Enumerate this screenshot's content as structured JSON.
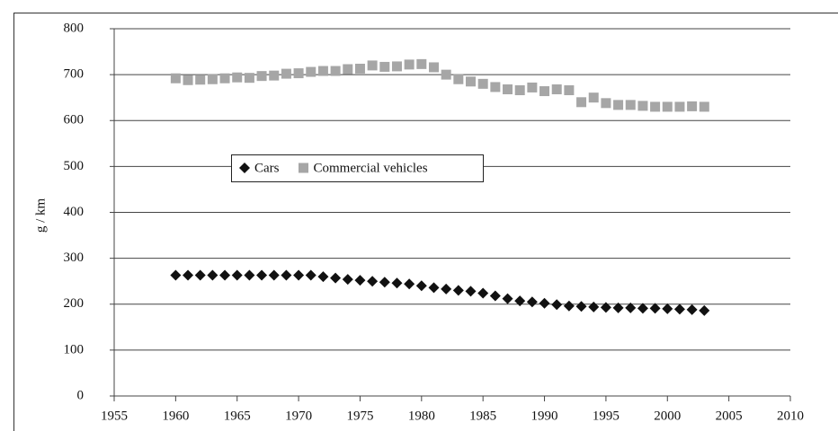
{
  "chart_data": {
    "type": "scatter",
    "y_label": "g / km",
    "x": [
      1960,
      1961,
      1962,
      1963,
      1964,
      1965,
      1966,
      1967,
      1968,
      1969,
      1970,
      1971,
      1972,
      1973,
      1974,
      1975,
      1976,
      1977,
      1978,
      1979,
      1980,
      1981,
      1982,
      1983,
      1984,
      1985,
      1986,
      1987,
      1988,
      1989,
      1990,
      1991,
      1992,
      1993,
      1994,
      1995,
      1996,
      1997,
      1998,
      1999,
      2000,
      2001,
      2002,
      2003
    ],
    "series": [
      {
        "name": "Cars",
        "color": "#111111",
        "marker": "diamond",
        "values": [
          263,
          263,
          263,
          263,
          263,
          263,
          263,
          263,
          263,
          263,
          263,
          263,
          260,
          257,
          254,
          252,
          250,
          248,
          246,
          244,
          240,
          236,
          233,
          230,
          228,
          224,
          218,
          212,
          207,
          205,
          202,
          199,
          196,
          195,
          194,
          193,
          192,
          192,
          191,
          191,
          190,
          189,
          188,
          186
        ]
      },
      {
        "name": "Commercial vehicles",
        "color": "#a6a6a6",
        "marker": "square",
        "values": [
          692,
          688,
          689,
          690,
          692,
          694,
          693,
          697,
          698,
          702,
          703,
          706,
          708,
          708,
          712,
          713,
          720,
          717,
          718,
          722,
          723,
          716,
          700,
          690,
          685,
          680,
          673,
          668,
          666,
          672,
          664,
          668,
          666,
          640,
          650,
          638,
          634,
          634,
          632,
          630,
          630,
          630,
          631,
          630
        ]
      }
    ],
    "xlim": [
      1955,
      2010
    ],
    "xticks": [
      1955,
      1960,
      1965,
      1970,
      1975,
      1980,
      1985,
      1990,
      1995,
      2000,
      2005,
      2010
    ],
    "ylim": [
      0,
      800
    ],
    "yticks": [
      0,
      100,
      200,
      300,
      400,
      500,
      600,
      700,
      800
    ],
    "grid": true
  }
}
